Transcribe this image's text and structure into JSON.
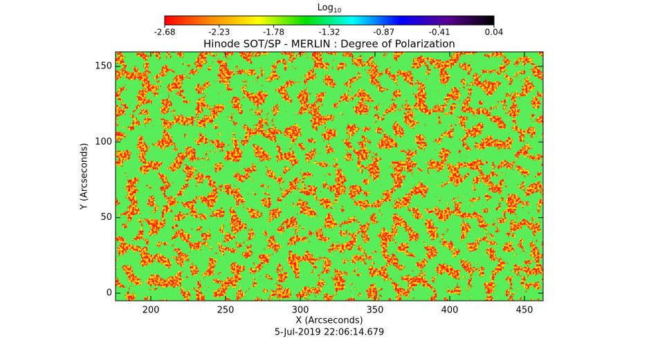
{
  "chart_data": {
    "type": "image",
    "title": "Hinode SOT/SP - MERLIN : Degree of Polarization",
    "x_label": "X (Arcseconds)",
    "y_label": "Y (Arcseconds)",
    "footer": "5-Jul-2019 22:06:14.679",
    "colorbar_title": "Log",
    "colorbar_title_sub": "10",
    "colormap": [
      "#ff0000",
      "#ff8c00",
      "#ffff00",
      "#00e000",
      "#00ffff",
      "#0000ff",
      "#5a0090",
      "#000000"
    ],
    "zlim": [
      -2.68,
      0.04
    ],
    "zticks": [
      -2.68,
      -2.23,
      -1.78,
      -1.32,
      -0.87,
      -0.41,
      0.04
    ],
    "xlim": [
      176.4,
      462.5
    ],
    "xticks": [
      200,
      250,
      300,
      350,
      400,
      450
    ],
    "ylim": [
      -5,
      159.6
    ],
    "yticks": [
      0,
      50,
      100,
      150
    ]
  }
}
